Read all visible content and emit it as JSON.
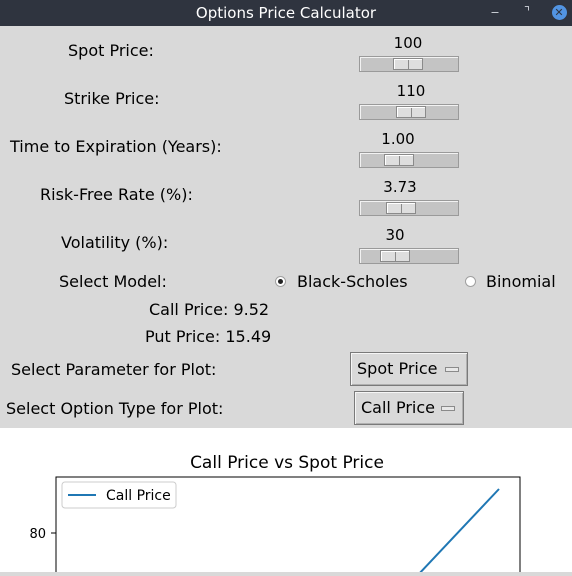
{
  "window": {
    "title": "Options Price Calculator",
    "min_glyph": "‒",
    "max_glyph": "⌝",
    "close_glyph": "✕"
  },
  "inputs": {
    "spot": {
      "label": "Spot Price:",
      "value": "100"
    },
    "strike": {
      "label": "Strike Price:",
      "value": "110"
    },
    "time": {
      "label": "Time to Expiration (Years):",
      "value": "1.00"
    },
    "rate": {
      "label": "Risk-Free Rate (%):",
      "value": "3.73"
    },
    "vol": {
      "label": "Volatility (%):",
      "value": "30"
    }
  },
  "model": {
    "label": "Select Model:",
    "options": [
      {
        "label": "Black-Scholes",
        "selected": true
      },
      {
        "label": "Binomial",
        "selected": false
      }
    ]
  },
  "results": {
    "call": "Call Price: 9.52",
    "put": "Put Price: 15.49"
  },
  "plot_param": {
    "label": "Select Parameter for Plot:",
    "value": "Spot Price"
  },
  "plot_type": {
    "label": "Select Option Type for Plot:",
    "value": "Call Price"
  },
  "chart_data": {
    "type": "line",
    "title": "Call Price vs Spot Price",
    "xlabel": "",
    "ylabel": "",
    "yticks": [
      80
    ],
    "legend": "top-left",
    "series": [
      {
        "name": "Call Price",
        "color": "#1f77b4"
      }
    ]
  }
}
